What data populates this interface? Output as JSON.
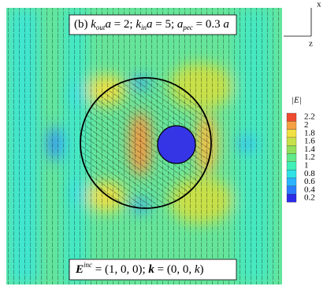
{
  "chart_data": {
    "type": "contour",
    "title": [
      "(b) ",
      "k",
      "out",
      "a",
      " = 2; ",
      "k",
      "in",
      "a",
      " = 5; ",
      "a",
      "pec",
      " = 0.3 ",
      "a"
    ],
    "annotation": [
      "E",
      "inc",
      " = (1, 0, 0); ",
      "k",
      " = (0, 0, ",
      "k",
      ")"
    ],
    "axis_labels": {
      "x": "x",
      "z": "z"
    },
    "colorbar": {
      "label": "|E|",
      "ticks": [
        0.2,
        0.4,
        0.6,
        0.8,
        1,
        1.2,
        1.4,
        1.6,
        1.8,
        2,
        2.2
      ],
      "colors": [
        "#2b2be8",
        "#2a7cff",
        "#2ab4ff",
        "#2fe2e6",
        "#3ff0b8",
        "#62ea8a",
        "#92e05c",
        "#c8e04a",
        "#f2df42",
        "#f6a042",
        "#ee4a30"
      ]
    }
  }
}
